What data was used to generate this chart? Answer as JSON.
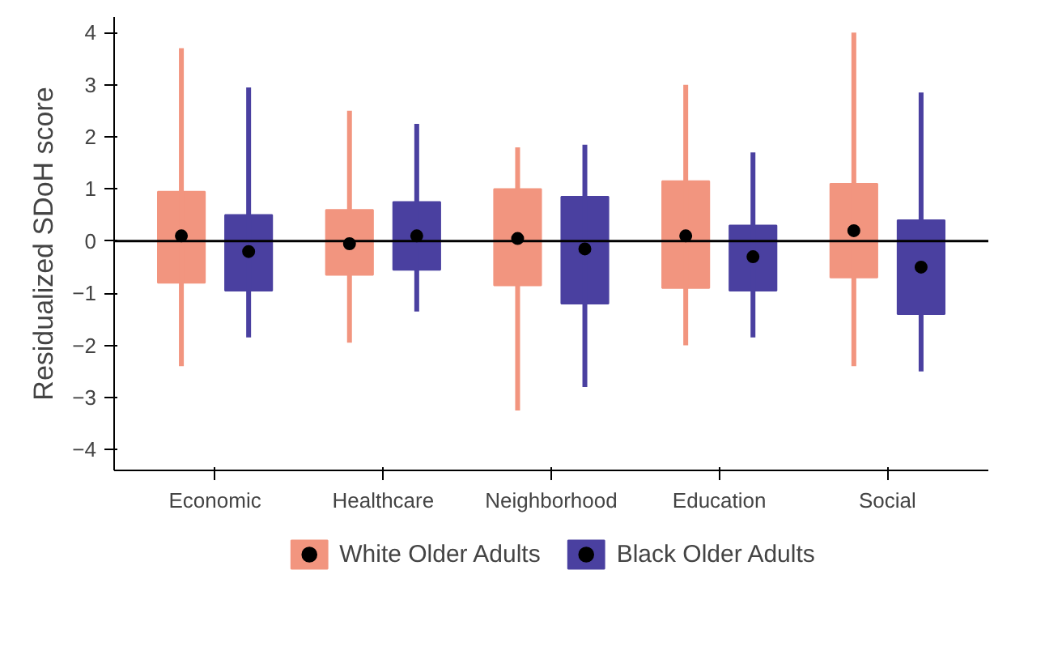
{
  "chart_data": {
    "type": "box",
    "ylabel": "Residualized SDoH score",
    "categories": [
      "Economic",
      "Healthcare",
      "Neighborhood",
      "Education",
      "Social"
    ],
    "ylim": [
      -4.4,
      4.3
    ],
    "yticks": [
      -4,
      -3,
      -2,
      -1,
      0,
      1,
      2,
      3,
      4
    ],
    "grid": false,
    "legend": "bottom",
    "ref_lines": [
      {
        "axis": "y",
        "value": 0,
        "color": "#000000"
      }
    ],
    "series": [
      {
        "name": "White Older Adults",
        "color": "#f2957f",
        "boxes": [
          {
            "low": -2.4,
            "q1": -0.8,
            "median": 0.1,
            "q3": 0.95,
            "high": 3.7
          },
          {
            "low": -1.95,
            "q1": -0.65,
            "median": -0.05,
            "q3": 0.6,
            "high": 2.5
          },
          {
            "low": -3.25,
            "q1": -0.85,
            "median": 0.05,
            "q3": 1.0,
            "high": 1.8
          },
          {
            "low": -2.0,
            "q1": -0.9,
            "median": 0.1,
            "q3": 1.15,
            "high": 3.0
          },
          {
            "low": -2.4,
            "q1": -0.7,
            "median": 0.2,
            "q3": 1.1,
            "high": 4.0
          }
        ]
      },
      {
        "name": "Black Older Adults",
        "color": "#4a40a0",
        "boxes": [
          {
            "low": -1.85,
            "q1": -0.95,
            "median": -0.2,
            "q3": 0.5,
            "high": 2.95
          },
          {
            "low": -1.35,
            "q1": -0.55,
            "median": 0.1,
            "q3": 0.75,
            "high": 2.25
          },
          {
            "low": -2.8,
            "q1": -1.2,
            "median": -0.15,
            "q3": 0.85,
            "high": 1.85
          },
          {
            "low": -1.85,
            "q1": -0.95,
            "median": -0.3,
            "q3": 0.3,
            "high": 1.7
          },
          {
            "low": -2.5,
            "q1": -1.4,
            "median": -0.5,
            "q3": 0.4,
            "high": 2.85
          }
        ]
      }
    ]
  }
}
